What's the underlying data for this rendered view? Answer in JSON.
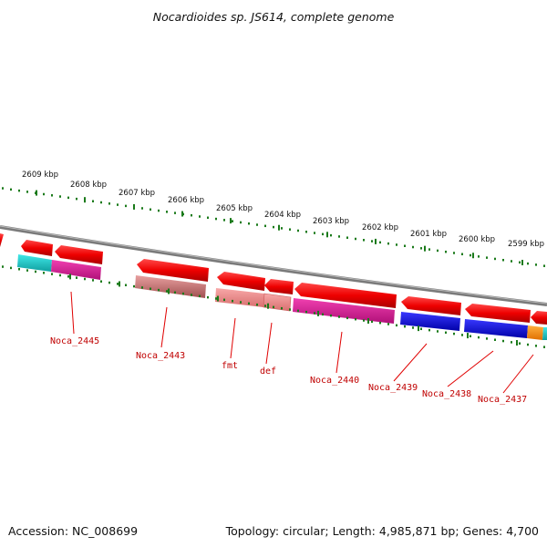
{
  "title": "Nocardioides sp. JS614, complete genome",
  "footer": {
    "accession": "Accession: NC_008699",
    "summary": "Topology: circular; Length: 4,985,871 bp; Genes: 4,700"
  },
  "scale_labels": [
    "2609 kbp",
    "2608 kbp",
    "2607 kbp",
    "2606 kbp",
    "2605 kbp",
    "2604 kbp",
    "2603 kbp",
    "2602 kbp",
    "2601 kbp",
    "2600 kbp",
    "2599 kbp"
  ],
  "gene_labels": [
    "Noca_2445",
    "Noca_2443",
    "fmt",
    "def",
    "Noca_2440",
    "Noca_2439",
    "Noca_2438",
    "Noca_2437"
  ],
  "colors": {
    "backbone": "#8c8c8c",
    "tick": "#1a7a1a",
    "cds_arrow": "#ee0000",
    "label": "#c00000",
    "cog_cyan": "#20c8c8",
    "cog_magenta": "#e0209a",
    "cog_salmon": "#f08c8c",
    "cog_rosy": "#c87070",
    "cog_blue": "#1010d8",
    "cog_orange": "#ff9010"
  }
}
